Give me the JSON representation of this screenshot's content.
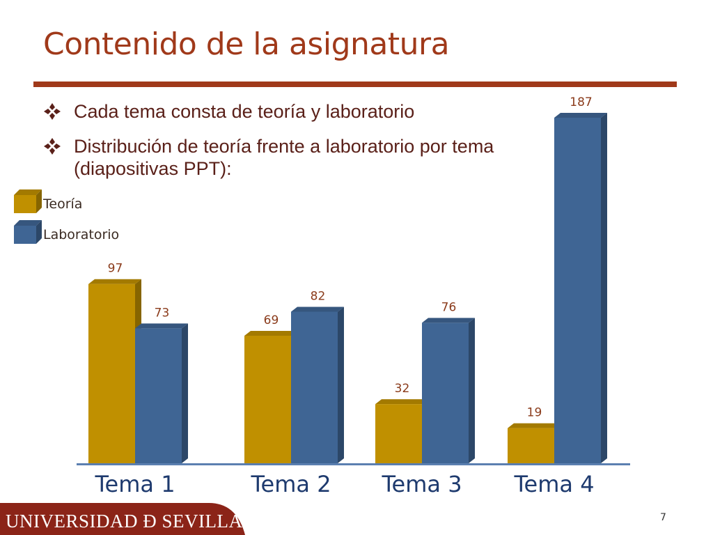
{
  "slide": {
    "title": "Contenido de la asignatura",
    "bullets": [
      "Cada tema consta de teoría y laboratorio",
      "Distribución de teoría frente a laboratorio por tema (diapositivas PPT):"
    ],
    "footer": "UNIVERSIDAD Ð SEVILLA",
    "page_number": "7",
    "colors": {
      "title": "#a0391a",
      "rule": "#a0391a",
      "bullet_text": "#5a2019",
      "footer_band": "#8b2418"
    }
  },
  "chart_data": {
    "type": "bar",
    "categories": [
      "Tema 1",
      "Tema 2",
      "Tema 3",
      "Tema 4"
    ],
    "series": [
      {
        "name": "Teoría",
        "values": [
          97,
          69,
          32,
          19
        ],
        "color": "#c09000"
      },
      {
        "name": "Laboratorio",
        "values": [
          73,
          82,
          76,
          187
        ],
        "color": "#3f6594"
      }
    ],
    "ylim": [
      0,
      187
    ],
    "value_label_color": "#8a3a1a",
    "legend_position": "top-left",
    "grid": false
  }
}
